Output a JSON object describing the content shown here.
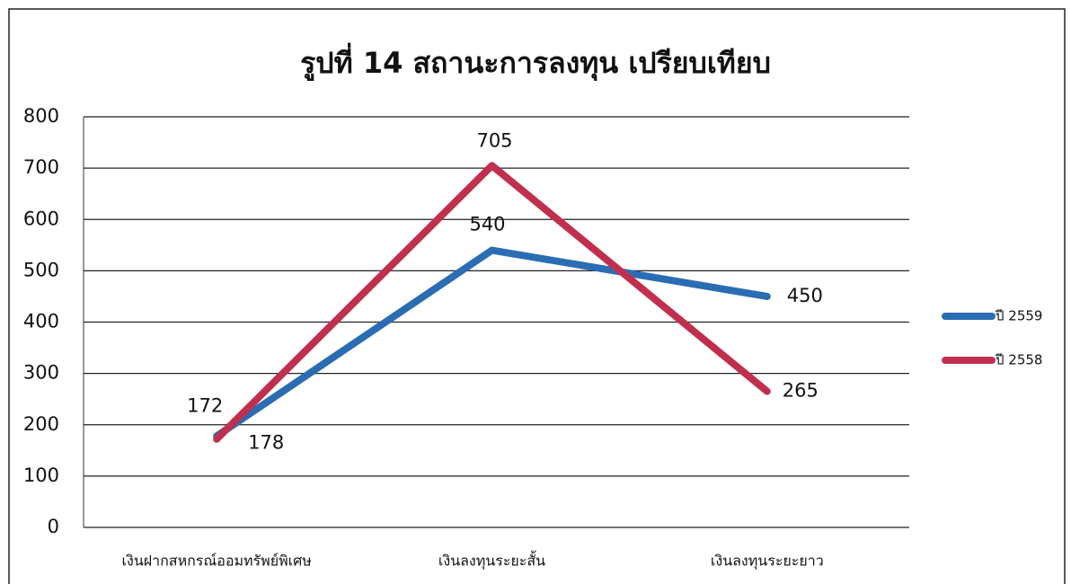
{
  "chart_data": {
    "type": "line",
    "title": "รูปที่ 14  สถานะการลงทุน  เปรียบเทียบ",
    "categories": [
      "เงินฝากสหกรณ์ออมทรัพย์พิเศษ",
      "เงินลงทุนระยะสั้น",
      "เงินลงทุนระยะยาว"
    ],
    "series": [
      {
        "name": "ปี 2559",
        "color": "#2a6db3",
        "values": [
          178,
          540,
          450
        ]
      },
      {
        "name": "ปี 2558",
        "color": "#c0304e",
        "values": [
          172,
          705,
          265
        ]
      }
    ],
    "ylim": [
      0,
      800
    ],
    "yticks": [
      0,
      100,
      200,
      300,
      400,
      500,
      600,
      700,
      800
    ],
    "grid": true,
    "legend": "right"
  }
}
